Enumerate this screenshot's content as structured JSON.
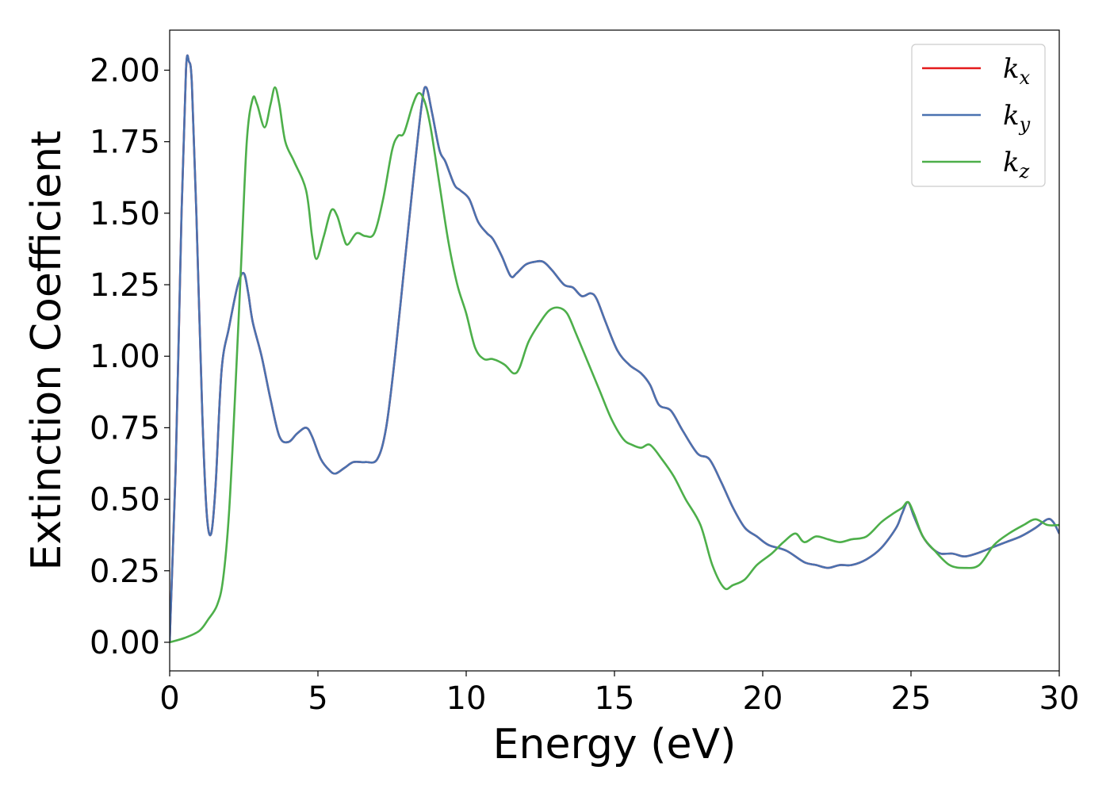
{
  "chart_data": {
    "type": "line",
    "xlabel": "Energy (eV)",
    "ylabel": "Extinction Coefficient",
    "xlim": [
      0,
      30
    ],
    "ylim": [
      -0.1,
      2.14
    ],
    "x_ticks": [
      0,
      5,
      10,
      15,
      20,
      25,
      30
    ],
    "x_tick_labels": [
      "0",
      "5",
      "10",
      "15",
      "20",
      "25",
      "30"
    ],
    "y_ticks": [
      0,
      0.25,
      0.5,
      0.75,
      1.0,
      1.25,
      1.5,
      1.75,
      2.0
    ],
    "y_tick_labels": [
      "0.00",
      "0.25",
      "0.50",
      "0.75",
      "1.00",
      "1.25",
      "1.50",
      "1.75",
      "2.00"
    ],
    "grid": false,
    "legend_position": "top-right",
    "series": [
      {
        "name": "k_x",
        "legend_base": "k",
        "legend_sub": "x",
        "color": "#e41a1c",
        "points": [
          [
            0,
            0
          ],
          [
            0.2,
            0.6
          ],
          [
            0.4,
            1.5
          ],
          [
            0.55,
            2.0
          ],
          [
            0.65,
            2.03
          ],
          [
            0.75,
            1.95
          ],
          [
            0.9,
            1.5
          ],
          [
            1.1,
            0.8
          ],
          [
            1.25,
            0.45
          ],
          [
            1.4,
            0.38
          ],
          [
            1.55,
            0.55
          ],
          [
            1.75,
            0.95
          ],
          [
            2.0,
            1.1
          ],
          [
            2.3,
            1.25
          ],
          [
            2.5,
            1.29
          ],
          [
            2.65,
            1.22
          ],
          [
            2.8,
            1.12
          ],
          [
            3.1,
            1.0
          ],
          [
            3.4,
            0.85
          ],
          [
            3.7,
            0.72
          ],
          [
            4.0,
            0.7
          ],
          [
            4.3,
            0.73
          ],
          [
            4.6,
            0.75
          ],
          [
            4.8,
            0.72
          ],
          [
            5.1,
            0.64
          ],
          [
            5.4,
            0.6
          ],
          [
            5.6,
            0.59
          ],
          [
            5.9,
            0.61
          ],
          [
            6.2,
            0.63
          ],
          [
            6.6,
            0.63
          ],
          [
            7.0,
            0.64
          ],
          [
            7.3,
            0.75
          ],
          [
            7.6,
            1.0
          ],
          [
            7.9,
            1.3
          ],
          [
            8.2,
            1.6
          ],
          [
            8.5,
            1.88
          ],
          [
            8.65,
            1.94
          ],
          [
            8.85,
            1.85
          ],
          [
            9.1,
            1.72
          ],
          [
            9.3,
            1.68
          ],
          [
            9.6,
            1.6
          ],
          [
            9.8,
            1.58
          ],
          [
            10.1,
            1.55
          ],
          [
            10.4,
            1.47
          ],
          [
            10.7,
            1.43
          ],
          [
            10.9,
            1.41
          ],
          [
            11.2,
            1.35
          ],
          [
            11.5,
            1.28
          ],
          [
            11.7,
            1.29
          ],
          [
            12.0,
            1.32
          ],
          [
            12.3,
            1.33
          ],
          [
            12.6,
            1.33
          ],
          [
            12.9,
            1.3
          ],
          [
            13.3,
            1.25
          ],
          [
            13.6,
            1.24
          ],
          [
            13.9,
            1.21
          ],
          [
            14.2,
            1.22
          ],
          [
            14.4,
            1.2
          ],
          [
            14.7,
            1.12
          ],
          [
            15.1,
            1.02
          ],
          [
            15.5,
            0.97
          ],
          [
            15.9,
            0.94
          ],
          [
            16.2,
            0.9
          ],
          [
            16.5,
            0.83
          ],
          [
            16.9,
            0.81
          ],
          [
            17.3,
            0.74
          ],
          [
            17.8,
            0.66
          ],
          [
            18.2,
            0.64
          ],
          [
            18.6,
            0.56
          ],
          [
            19.0,
            0.47
          ],
          [
            19.4,
            0.4
          ],
          [
            19.8,
            0.37
          ],
          [
            20.2,
            0.34
          ],
          [
            20.8,
            0.32
          ],
          [
            21.4,
            0.28
          ],
          [
            21.8,
            0.27
          ],
          [
            22.2,
            0.26
          ],
          [
            22.6,
            0.27
          ],
          [
            23.0,
            0.27
          ],
          [
            23.5,
            0.29
          ],
          [
            24.0,
            0.33
          ],
          [
            24.5,
            0.4
          ],
          [
            24.7,
            0.45
          ],
          [
            24.9,
            0.49
          ],
          [
            25.1,
            0.44
          ],
          [
            25.4,
            0.37
          ],
          [
            25.7,
            0.33
          ],
          [
            26.0,
            0.31
          ],
          [
            26.4,
            0.31
          ],
          [
            26.8,
            0.3
          ],
          [
            27.2,
            0.31
          ],
          [
            27.7,
            0.33
          ],
          [
            28.2,
            0.35
          ],
          [
            28.7,
            0.37
          ],
          [
            29.2,
            0.4
          ],
          [
            29.6,
            0.43
          ],
          [
            29.8,
            0.42
          ],
          [
            30.0,
            0.38
          ]
        ]
      },
      {
        "name": "k_y",
        "legend_base": "k",
        "legend_sub": "y",
        "color": "#4a72b0",
        "points": [
          [
            0,
            0
          ],
          [
            0.2,
            0.6
          ],
          [
            0.4,
            1.5
          ],
          [
            0.55,
            2.0
          ],
          [
            0.65,
            2.03
          ],
          [
            0.75,
            1.95
          ],
          [
            0.9,
            1.5
          ],
          [
            1.1,
            0.8
          ],
          [
            1.25,
            0.45
          ],
          [
            1.4,
            0.38
          ],
          [
            1.55,
            0.55
          ],
          [
            1.75,
            0.95
          ],
          [
            2.0,
            1.1
          ],
          [
            2.3,
            1.25
          ],
          [
            2.5,
            1.29
          ],
          [
            2.65,
            1.22
          ],
          [
            2.8,
            1.12
          ],
          [
            3.1,
            1.0
          ],
          [
            3.4,
            0.85
          ],
          [
            3.7,
            0.72
          ],
          [
            4.0,
            0.7
          ],
          [
            4.3,
            0.73
          ],
          [
            4.6,
            0.75
          ],
          [
            4.8,
            0.72
          ],
          [
            5.1,
            0.64
          ],
          [
            5.4,
            0.6
          ],
          [
            5.6,
            0.59
          ],
          [
            5.9,
            0.61
          ],
          [
            6.2,
            0.63
          ],
          [
            6.6,
            0.63
          ],
          [
            7.0,
            0.64
          ],
          [
            7.3,
            0.75
          ],
          [
            7.6,
            1.0
          ],
          [
            7.9,
            1.3
          ],
          [
            8.2,
            1.6
          ],
          [
            8.5,
            1.88
          ],
          [
            8.65,
            1.94
          ],
          [
            8.85,
            1.85
          ],
          [
            9.1,
            1.72
          ],
          [
            9.3,
            1.68
          ],
          [
            9.6,
            1.6
          ],
          [
            9.8,
            1.58
          ],
          [
            10.1,
            1.55
          ],
          [
            10.4,
            1.47
          ],
          [
            10.7,
            1.43
          ],
          [
            10.9,
            1.41
          ],
          [
            11.2,
            1.35
          ],
          [
            11.5,
            1.28
          ],
          [
            11.7,
            1.29
          ],
          [
            12.0,
            1.32
          ],
          [
            12.3,
            1.33
          ],
          [
            12.6,
            1.33
          ],
          [
            12.9,
            1.3
          ],
          [
            13.3,
            1.25
          ],
          [
            13.6,
            1.24
          ],
          [
            13.9,
            1.21
          ],
          [
            14.2,
            1.22
          ],
          [
            14.4,
            1.2
          ],
          [
            14.7,
            1.12
          ],
          [
            15.1,
            1.02
          ],
          [
            15.5,
            0.97
          ],
          [
            15.9,
            0.94
          ],
          [
            16.2,
            0.9
          ],
          [
            16.5,
            0.83
          ],
          [
            16.9,
            0.81
          ],
          [
            17.3,
            0.74
          ],
          [
            17.8,
            0.66
          ],
          [
            18.2,
            0.64
          ],
          [
            18.6,
            0.56
          ],
          [
            19.0,
            0.47
          ],
          [
            19.4,
            0.4
          ],
          [
            19.8,
            0.37
          ],
          [
            20.2,
            0.34
          ],
          [
            20.8,
            0.32
          ],
          [
            21.4,
            0.28
          ],
          [
            21.8,
            0.27
          ],
          [
            22.2,
            0.26
          ],
          [
            22.6,
            0.27
          ],
          [
            23.0,
            0.27
          ],
          [
            23.5,
            0.29
          ],
          [
            24.0,
            0.33
          ],
          [
            24.5,
            0.4
          ],
          [
            24.7,
            0.45
          ],
          [
            24.9,
            0.49
          ],
          [
            25.1,
            0.44
          ],
          [
            25.4,
            0.37
          ],
          [
            25.7,
            0.33
          ],
          [
            26.0,
            0.31
          ],
          [
            26.4,
            0.31
          ],
          [
            26.8,
            0.3
          ],
          [
            27.2,
            0.31
          ],
          [
            27.7,
            0.33
          ],
          [
            28.2,
            0.35
          ],
          [
            28.7,
            0.37
          ],
          [
            29.2,
            0.4
          ],
          [
            29.6,
            0.43
          ],
          [
            29.8,
            0.42
          ],
          [
            30.0,
            0.38
          ]
        ]
      },
      {
        "name": "k_z",
        "legend_base": "k",
        "legend_sub": "z",
        "color": "#4daf4a",
        "points": [
          [
            0,
            0
          ],
          [
            0.5,
            0.015
          ],
          [
            1.0,
            0.04
          ],
          [
            1.3,
            0.08
          ],
          [
            1.6,
            0.13
          ],
          [
            1.8,
            0.22
          ],
          [
            2.0,
            0.45
          ],
          [
            2.2,
            0.85
          ],
          [
            2.4,
            1.3
          ],
          [
            2.6,
            1.75
          ],
          [
            2.8,
            1.9
          ],
          [
            2.95,
            1.88
          ],
          [
            3.2,
            1.8
          ],
          [
            3.4,
            1.88
          ],
          [
            3.55,
            1.94
          ],
          [
            3.7,
            1.88
          ],
          [
            3.9,
            1.75
          ],
          [
            4.2,
            1.68
          ],
          [
            4.6,
            1.58
          ],
          [
            4.8,
            1.42
          ],
          [
            4.95,
            1.34
          ],
          [
            5.2,
            1.42
          ],
          [
            5.45,
            1.51
          ],
          [
            5.65,
            1.49
          ],
          [
            5.85,
            1.42
          ],
          [
            6.0,
            1.39
          ],
          [
            6.3,
            1.43
          ],
          [
            6.6,
            1.42
          ],
          [
            6.9,
            1.43
          ],
          [
            7.2,
            1.55
          ],
          [
            7.5,
            1.72
          ],
          [
            7.7,
            1.77
          ],
          [
            7.9,
            1.78
          ],
          [
            8.2,
            1.88
          ],
          [
            8.4,
            1.92
          ],
          [
            8.6,
            1.89
          ],
          [
            8.8,
            1.8
          ],
          [
            9.1,
            1.6
          ],
          [
            9.4,
            1.4
          ],
          [
            9.7,
            1.25
          ],
          [
            10.0,
            1.15
          ],
          [
            10.3,
            1.03
          ],
          [
            10.6,
            0.99
          ],
          [
            10.9,
            0.99
          ],
          [
            11.3,
            0.97
          ],
          [
            11.6,
            0.94
          ],
          [
            11.8,
            0.96
          ],
          [
            12.1,
            1.05
          ],
          [
            12.5,
            1.12
          ],
          [
            12.8,
            1.16
          ],
          [
            13.1,
            1.17
          ],
          [
            13.4,
            1.15
          ],
          [
            13.7,
            1.08
          ],
          [
            14.1,
            0.98
          ],
          [
            14.5,
            0.88
          ],
          [
            14.9,
            0.78
          ],
          [
            15.3,
            0.71
          ],
          [
            15.6,
            0.69
          ],
          [
            15.9,
            0.68
          ],
          [
            16.2,
            0.69
          ],
          [
            16.6,
            0.64
          ],
          [
            17.0,
            0.58
          ],
          [
            17.4,
            0.5
          ],
          [
            17.9,
            0.41
          ],
          [
            18.3,
            0.27
          ],
          [
            18.7,
            0.19
          ],
          [
            19.0,
            0.2
          ],
          [
            19.4,
            0.22
          ],
          [
            19.8,
            0.27
          ],
          [
            20.3,
            0.31
          ],
          [
            20.7,
            0.35
          ],
          [
            21.1,
            0.38
          ],
          [
            21.4,
            0.35
          ],
          [
            21.8,
            0.37
          ],
          [
            22.2,
            0.36
          ],
          [
            22.6,
            0.35
          ],
          [
            23.0,
            0.36
          ],
          [
            23.5,
            0.37
          ],
          [
            24.0,
            0.42
          ],
          [
            24.4,
            0.45
          ],
          [
            24.7,
            0.47
          ],
          [
            24.9,
            0.49
          ],
          [
            25.1,
            0.45
          ],
          [
            25.4,
            0.37
          ],
          [
            25.8,
            0.32
          ],
          [
            26.3,
            0.27
          ],
          [
            26.8,
            0.26
          ],
          [
            27.3,
            0.27
          ],
          [
            27.8,
            0.34
          ],
          [
            28.3,
            0.38
          ],
          [
            28.8,
            0.41
          ],
          [
            29.2,
            0.43
          ],
          [
            29.6,
            0.41
          ],
          [
            30.0,
            0.41
          ]
        ]
      }
    ]
  }
}
